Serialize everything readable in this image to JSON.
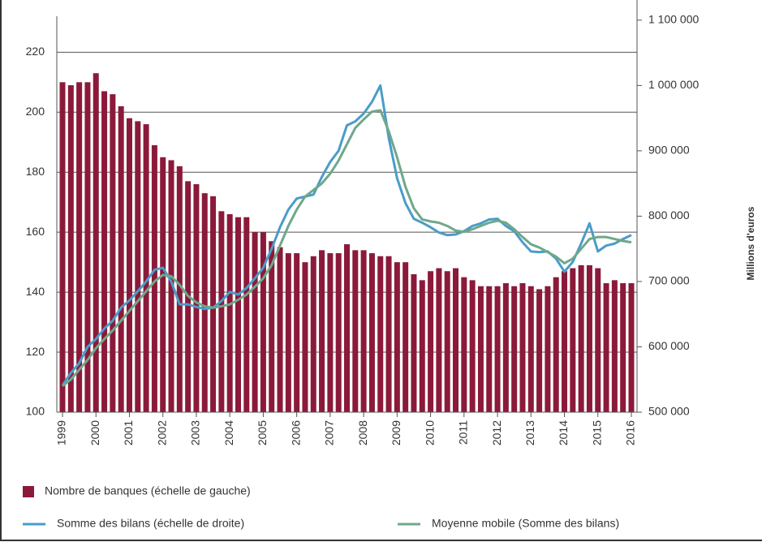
{
  "chart_data": {
    "type": "bar-line",
    "y2_label": "Millions d'euros",
    "x": [
      1999,
      1999.25,
      1999.5,
      1999.75,
      2000,
      2000.25,
      2000.5,
      2000.75,
      2001,
      2001.25,
      2001.5,
      2001.75,
      2002,
      2002.25,
      2002.5,
      2002.75,
      2003,
      2003.25,
      2003.5,
      2003.75,
      2004,
      2004.25,
      2004.5,
      2004.75,
      2005,
      2005.25,
      2005.5,
      2005.75,
      2006,
      2006.25,
      2006.5,
      2006.75,
      2007,
      2007.25,
      2007.5,
      2007.75,
      2008,
      2008.25,
      2008.5,
      2008.75,
      2009,
      2009.25,
      2009.5,
      2009.75,
      2010,
      2010.25,
      2010.5,
      2010.75,
      2011,
      2011.25,
      2011.5,
      2011.75,
      2012,
      2012.25,
      2012.5,
      2012.75,
      2013,
      2013.25,
      2013.5,
      2013.75,
      2014,
      2014.25,
      2014.5,
      2014.75,
      2015,
      2015.25,
      2015.5,
      2015.75,
      2016
    ],
    "xlim": [
      1998.83,
      2016.17
    ],
    "xticks": [
      1999,
      2000,
      2001,
      2002,
      2003,
      2004,
      2005,
      2006,
      2007,
      2008,
      2009,
      2010,
      2011,
      2012,
      2013,
      2014,
      2015,
      2016
    ],
    "ylim": [
      100,
      232
    ],
    "yticks": [
      100,
      120,
      140,
      160,
      180,
      200,
      220
    ],
    "y2lim": [
      500000,
      1106000
    ],
    "y2ticks": [
      {
        "value": 500000,
        "label": "500 000"
      },
      {
        "value": 600000,
        "label": "600 000"
      },
      {
        "value": 700000,
        "label": "700 000"
      },
      {
        "value": 800000,
        "label": "800 000"
      },
      {
        "value": 900000,
        "label": "900 000"
      },
      {
        "value": 1000000,
        "label": "1 000 000"
      },
      {
        "value": 1100000,
        "label": "1 100 000"
      }
    ],
    "grid": true,
    "series": [
      {
        "name": "Nombre de banques (échelle de gauche)",
        "type": "bar",
        "color": "#8b1a3a",
        "values": [
          210,
          209,
          210,
          210,
          213,
          207,
          206,
          202,
          198,
          197,
          196,
          189,
          185,
          184,
          182,
          177,
          176,
          173,
          172,
          167,
          166,
          165,
          165,
          160,
          160,
          157,
          155,
          153,
          153,
          150,
          152,
          154,
          153,
          153,
          156,
          154,
          154,
          153,
          152,
          152,
          150,
          150,
          146,
          144,
          147,
          148,
          147,
          148,
          145,
          144,
          142,
          142,
          142,
          143,
          142,
          143,
          142,
          141,
          142,
          145,
          147,
          148,
          149,
          149,
          148,
          143,
          144,
          143,
          143
        ]
      },
      {
        "name": "Somme des bilans (échelle de droite)",
        "type": "line",
        "axis": "y2",
        "color": "#4a9cc9",
        "values": [
          541000,
          560000,
          575000,
          600000,
          612000,
          628000,
          640000,
          660000,
          671000,
          685000,
          700000,
          718000,
          721000,
          700000,
          665000,
          665000,
          661000,
          658000,
          660000,
          670000,
          684000,
          680000,
          690000,
          705000,
          721000,
          750000,
          783000,
          810000,
          827000,
          830000,
          833000,
          860000,
          883000,
          900000,
          939000,
          945000,
          957000,
          975000,
          1000000,
          920000,
          858000,
          820000,
          796000,
          790000,
          783000,
          775000,
          771000,
          772000,
          777000,
          785000,
          789000,
          795000,
          796000,
          785000,
          777000,
          760000,
          746000,
          745000,
          746000,
          735000,
          715000,
          730000,
          758000,
          789000,
          746000,
          755000,
          758000,
          765000,
          771000
        ]
      },
      {
        "name": "Moyenne mobile (Somme des bilans)",
        "type": "line",
        "axis": "y2",
        "color": "#6fa88a",
        "values": [
          540000,
          550000,
          565000,
          580000,
          598000,
          612000,
          625000,
          640000,
          655000,
          670000,
          685000,
          700000,
          710000,
          708000,
          695000,
          678000,
          668000,
          662000,
          660000,
          662000,
          665000,
          672000,
          680000,
          692000,
          705000,
          725000,
          755000,
          785000,
          810000,
          830000,
          840000,
          850000,
          865000,
          885000,
          910000,
          935000,
          948000,
          960000,
          962000,
          930000,
          890000,
          845000,
          812000,
          795000,
          792000,
          790000,
          785000,
          778000,
          776000,
          780000,
          785000,
          790000,
          793000,
          790000,
          780000,
          768000,
          757000,
          752000,
          745000,
          738000,
          728000,
          735000,
          750000,
          765000,
          768000,
          768000,
          765000,
          762000,
          760000
        ]
      }
    ]
  }
}
